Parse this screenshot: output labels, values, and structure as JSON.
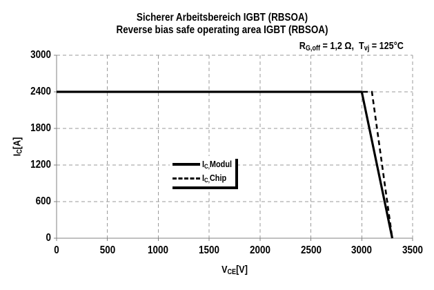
{
  "title": {
    "line1": "Sicherer Arbeitsbereich IGBT (RBSOA)",
    "line2": "Reverse bias safe operating area IGBT (RBSOA)"
  },
  "conditions": {
    "parts": [
      {
        "text": "R"
      },
      {
        "sub": "G,off"
      },
      {
        "text": " = 1,2 Ω,  "
      },
      {
        "text": "T"
      },
      {
        "sub": "vj"
      },
      {
        "text": " = 125°C"
      }
    ]
  },
  "axes": {
    "y_title_parts": [
      {
        "text": "I"
      },
      {
        "sub": "C"
      },
      {
        "text": "[A]"
      }
    ],
    "x_title_parts": [
      {
        "text": "V"
      },
      {
        "sub": "CE"
      },
      {
        "text": "[V]"
      }
    ]
  },
  "legend": {
    "entries": [
      {
        "line_style": "solid",
        "parts": [
          {
            "text": "I"
          },
          {
            "sub": "C,"
          },
          {
            "text": "Modul"
          }
        ]
      },
      {
        "line_style": "dashed",
        "parts": [
          {
            "text": "I"
          },
          {
            "sub": "C,"
          },
          {
            "text": "Chip"
          }
        ]
      }
    ]
  },
  "chart_data": {
    "type": "line",
    "title": "Sicherer Arbeitsbereich IGBT (RBSOA) / Reverse bias safe operating area IGBT (RBSOA)",
    "conditions": "RG,off = 1,2 Ω, Tvj = 125°C",
    "xlabel": "VCE[V]",
    "ylabel": "IC[A]",
    "xlim": [
      0,
      3500
    ],
    "ylim": [
      0,
      3000
    ],
    "x_ticks": [
      0,
      500,
      1000,
      1500,
      2000,
      2500,
      3000,
      3500
    ],
    "y_ticks": [
      0,
      600,
      1200,
      1800,
      2400,
      3000
    ],
    "grid": "dashed",
    "legend_position": "inside-left-center",
    "series": [
      {
        "name": "IC,Modul",
        "style": "solid",
        "points": [
          [
            0,
            2400
          ],
          [
            3000,
            2400
          ],
          [
            3300,
            0
          ]
        ]
      },
      {
        "name": "IC,Chip",
        "style": "dashed",
        "points": [
          [
            0,
            2400
          ],
          [
            3100,
            2400
          ],
          [
            3300,
            0
          ]
        ]
      }
    ]
  },
  "colors": {
    "series": "#000000",
    "grid": "#999999",
    "axis": "#808080",
    "text": "#000000",
    "background": "#ffffff"
  }
}
